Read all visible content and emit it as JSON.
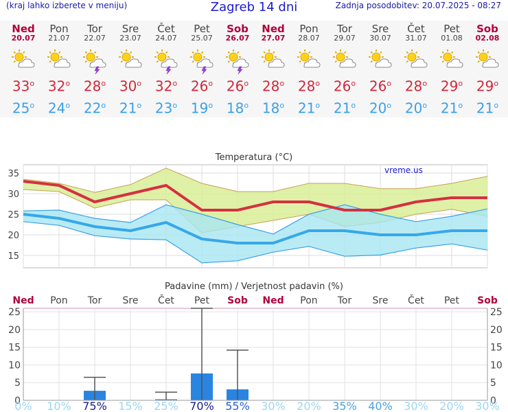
{
  "header": {
    "note": "(kraj lahko izberete v meniju)",
    "title": "Zagreb 14 dni",
    "updated": "Zadnja posodobitev: 20.07.2025 - 08:27"
  },
  "days": [
    {
      "name": "Ned",
      "date": "20.07",
      "weekend": true,
      "icon": "sun-cloud-icon",
      "max": "33",
      "min": "25"
    },
    {
      "name": "Pon",
      "date": "21.07",
      "weekend": false,
      "icon": "sun-cloud-icon",
      "max": "32",
      "min": "24"
    },
    {
      "name": "Tor",
      "date": "22.07",
      "weekend": false,
      "icon": "sun-cloud-storm-icon",
      "max": "28",
      "min": "22"
    },
    {
      "name": "Sre",
      "date": "23.07",
      "weekend": false,
      "icon": "sun-cloud-icon",
      "max": "30",
      "min": "21"
    },
    {
      "name": "Čet",
      "date": "24.07",
      "weekend": false,
      "icon": "sun-cloud-storm-icon",
      "max": "32",
      "min": "23"
    },
    {
      "name": "Pet",
      "date": "25.07",
      "weekend": false,
      "icon": "sun-cloud-storm-icon",
      "max": "26",
      "min": "19"
    },
    {
      "name": "Sob",
      "date": "26.07",
      "weekend": true,
      "icon": "sun-cloud-storm-icon",
      "max": "26",
      "min": "18"
    },
    {
      "name": "Ned",
      "date": "27.07",
      "weekend": true,
      "icon": "sun-cloud-icon",
      "max": "28",
      "min": "18"
    },
    {
      "name": "Pon",
      "date": "28.07",
      "weekend": false,
      "icon": "sun-cloud-icon",
      "max": "28",
      "min": "21"
    },
    {
      "name": "Tor",
      "date": "29.07",
      "weekend": false,
      "icon": "sun-cloud-icon",
      "max": "26",
      "min": "21"
    },
    {
      "name": "Sre",
      "date": "30.07",
      "weekend": false,
      "icon": "sun-cloud-icon",
      "max": "26",
      "min": "20"
    },
    {
      "name": "Čet",
      "date": "31.07",
      "weekend": false,
      "icon": "sun-cloud-icon",
      "max": "28",
      "min": "20"
    },
    {
      "name": "Pet",
      "date": "01.08",
      "weekend": false,
      "icon": "sun-cloud-icon",
      "max": "29",
      "min": "21"
    },
    {
      "name": "Sob",
      "date": "02.08",
      "weekend": true,
      "icon": "sun-cloud-icon",
      "max": "29",
      "min": "21"
    }
  ],
  "colors": {
    "weekend": "#b0003a",
    "max": "#d1283a",
    "min": "#3aa0e8"
  },
  "chart_data": [
    {
      "type": "line",
      "title": "Temperatura (°C)",
      "watermark": "vreme.us",
      "x": [
        "Ned",
        "Pon",
        "Tor",
        "Sre",
        "Čet",
        "Pet",
        "Sob",
        "Ned",
        "Pon",
        "Tor",
        "Sre",
        "Čet",
        "Pet",
        "Sob"
      ],
      "ylim": [
        12,
        37
      ],
      "yticks": [
        15,
        20,
        25,
        30,
        35
      ],
      "grid": true,
      "series": [
        {
          "role": "max",
          "values": [
            33,
            32,
            28,
            30,
            32,
            26,
            26,
            28,
            28,
            26,
            26,
            28,
            29,
            29
          ],
          "color": "#d63040"
        },
        {
          "role": "max-band-upper",
          "values": [
            33.5,
            32.5,
            30.3,
            32.2,
            36.2,
            32.5,
            30.5,
            30.5,
            32.5,
            32.5,
            31.2,
            31.2,
            32.5,
            34.2
          ],
          "color": "#d8ee98"
        },
        {
          "role": "max-band-lower",
          "values": [
            31,
            30.5,
            26.5,
            28.5,
            28.5,
            20.5,
            22,
            23.5,
            25,
            22,
            23,
            25,
            26.2,
            24.5
          ],
          "color": "#d8ee98"
        },
        {
          "role": "min",
          "values": [
            25,
            24,
            22,
            21,
            23,
            19,
            18,
            18,
            21,
            21,
            20,
            20,
            21,
            21
          ],
          "color": "#36a8e8"
        },
        {
          "role": "min-band-upper",
          "values": [
            25.8,
            26,
            24,
            23,
            27.3,
            25,
            22.5,
            20.2,
            25,
            27.3,
            25,
            23.2,
            24.5,
            26.3
          ],
          "color": "#a8e6f2"
        },
        {
          "role": "min-band-lower",
          "values": [
            23.2,
            22.3,
            19.8,
            19,
            18.8,
            13.2,
            13.7,
            15.8,
            17.2,
            14.8,
            15.1,
            16.8,
            17.8,
            16.3
          ],
          "color": "#a8e6f2"
        }
      ]
    },
    {
      "type": "bar",
      "title": "Padavine (mm) / Verjetnost padavin (%)",
      "categories": [
        "Ned",
        "Pon",
        "Tor",
        "Sre",
        "Čet",
        "Pet",
        "Sob",
        "Ned",
        "Pon",
        "Tor",
        "Sre",
        "Čet",
        "Pet",
        "Sob"
      ],
      "values": [
        0,
        0,
        2.7,
        0,
        0.3,
        7.6,
        3.1,
        0,
        0,
        0,
        0,
        0,
        0,
        0
      ],
      "error_high": [
        0,
        0,
        6.5,
        0,
        2.3,
        26,
        14.2,
        0,
        0,
        0,
        0,
        0,
        0,
        0
      ],
      "probability": [
        "0%",
        "10%",
        "75%",
        "15%",
        "25%",
        "70%",
        "55%",
        "30%",
        "20%",
        "35%",
        "40%",
        "30%",
        "20%",
        "30%"
      ],
      "ylim": [
        0,
        26
      ],
      "yticks": [
        0,
        5,
        10,
        15,
        20,
        25
      ],
      "grid": true
    }
  ]
}
